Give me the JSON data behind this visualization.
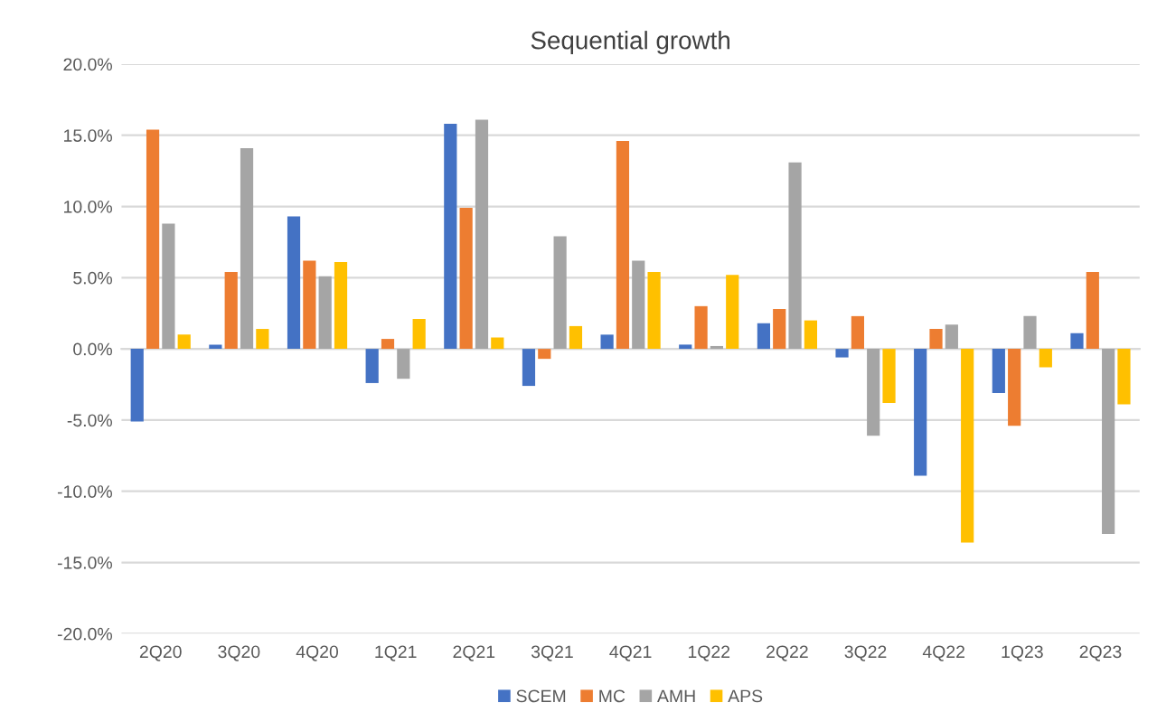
{
  "chart_data": {
    "type": "bar",
    "title": "Sequential growth",
    "categories": [
      "2Q20",
      "3Q20",
      "4Q20",
      "1Q21",
      "2Q21",
      "3Q21",
      "4Q21",
      "1Q22",
      "2Q22",
      "3Q22",
      "4Q22",
      "1Q23",
      "2Q23"
    ],
    "series": [
      {
        "name": "SCEM",
        "color": "#4472c4",
        "values": [
          -5.1,
          0.3,
          9.3,
          -2.4,
          15.8,
          -2.6,
          1.0,
          0.3,
          1.8,
          -0.6,
          -8.9,
          -3.1,
          1.1
        ]
      },
      {
        "name": "MC",
        "color": "#ed7d31",
        "values": [
          15.4,
          5.4,
          6.2,
          0.7,
          9.9,
          -0.7,
          14.6,
          3.0,
          2.8,
          2.3,
          1.4,
          -5.4,
          5.4
        ]
      },
      {
        "name": "AMH",
        "color": "#a5a5a5",
        "values": [
          8.8,
          14.1,
          5.1,
          -2.1,
          16.1,
          7.9,
          6.2,
          0.2,
          13.1,
          -6.1,
          1.7,
          2.3,
          -13.0
        ]
      },
      {
        "name": "APS",
        "color": "#ffc000",
        "values": [
          1.0,
          1.4,
          6.1,
          2.1,
          0.8,
          1.6,
          5.4,
          5.2,
          2.0,
          -3.8,
          -13.6,
          -1.3,
          -3.9
        ]
      }
    ],
    "ylim": [
      -20,
      20
    ],
    "yticks": [
      {
        "value": -20,
        "label": "-20.0%"
      },
      {
        "value": -15,
        "label": "-15.0%"
      },
      {
        "value": -10,
        "label": "-10.0%"
      },
      {
        "value": -5,
        "label": "-5.0%"
      },
      {
        "value": 0,
        "label": "0.0%"
      },
      {
        "value": 5,
        "label": "5.0%"
      },
      {
        "value": 10,
        "label": "10.0%"
      },
      {
        "value": 15,
        "label": "15.0%"
      },
      {
        "value": 20,
        "label": "20.0%"
      }
    ],
    "grid": "y",
    "legend": "bottom"
  }
}
